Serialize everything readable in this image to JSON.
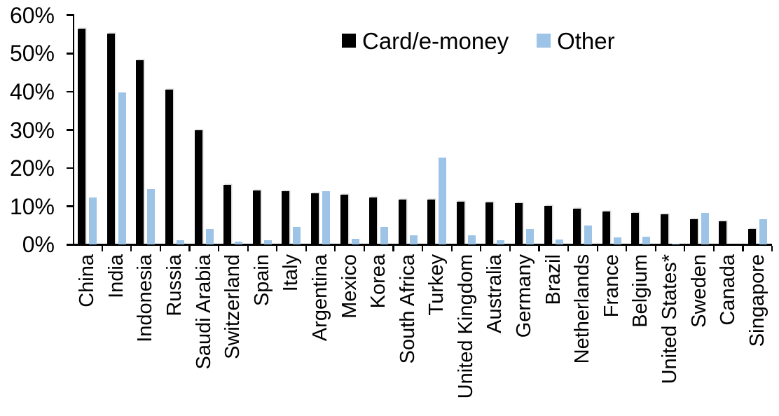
{
  "chart_data": {
    "type": "bar",
    "title": "",
    "xlabel": "",
    "ylabel": "",
    "ylim": [
      0,
      60
    ],
    "grid": false,
    "legend_position": "top-center",
    "y_ticks": [
      {
        "label": "0%",
        "value": 0
      },
      {
        "label": "10%",
        "value": 10
      },
      {
        "label": "20%",
        "value": 20
      },
      {
        "label": "30%",
        "value": 30
      },
      {
        "label": "40%",
        "value": 40
      },
      {
        "label": "50%",
        "value": 50
      },
      {
        "label": "60%",
        "value": 60
      }
    ],
    "categories": [
      "China",
      "India",
      "Indonesia",
      "Russia",
      "Saudi Arabia",
      "Switzerland",
      "Spain",
      "Italy",
      "Argentina",
      "Mexico",
      "Korea",
      "South Africa",
      "Turkey",
      "United Kingdom",
      "Australia",
      "Germany",
      "Brazil",
      "Netherlands",
      "France",
      "Belgium",
      "United States*",
      "Sweden",
      "Canada",
      "Singapore"
    ],
    "series": [
      {
        "name": "Card/e-money",
        "color": "#000000",
        "values": [
          56.4,
          55.1,
          48.2,
          40.5,
          29.9,
          15.6,
          14.1,
          14.0,
          13.5,
          13.0,
          12.3,
          11.8,
          11.7,
          11.2,
          11.0,
          10.8,
          10.1,
          9.4,
          8.7,
          8.3,
          8.0,
          6.6,
          6.0,
          4.0
        ]
      },
      {
        "name": "Other",
        "color": "#9DC3E6",
        "values": [
          12.3,
          39.7,
          14.5,
          1.1,
          4.0,
          0.8,
          1.1,
          4.7,
          13.9,
          1.5,
          4.6,
          2.5,
          22.7,
          2.4,
          1.1,
          4.0,
          1.3,
          5.0,
          1.8,
          2.1,
          0.3,
          8.2,
          0,
          6.7
        ]
      }
    ]
  },
  "colors": {
    "background": "#ffffff",
    "axis": "#000000",
    "text": "#000000"
  }
}
